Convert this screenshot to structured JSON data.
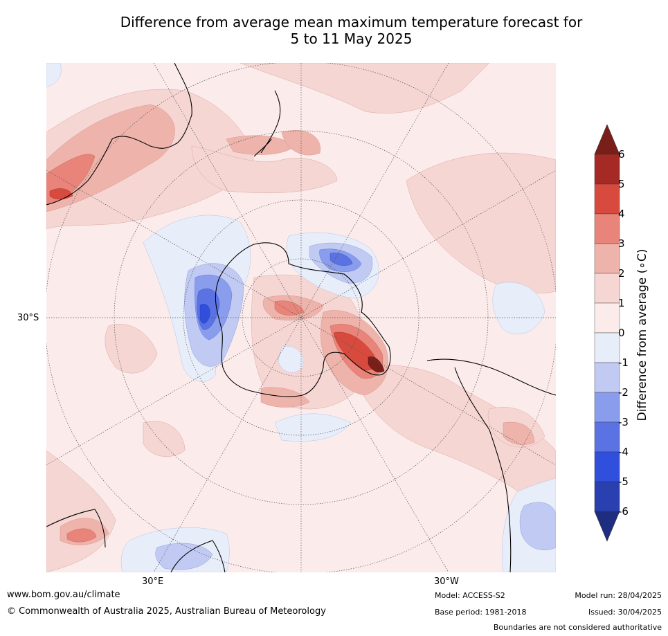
{
  "title": {
    "line1": "Difference from average mean maximum temperature forecast for",
    "line2": "5 to 11 May 2025"
  },
  "axis_labels": {
    "lat": "30°S",
    "lon_east": "30°E",
    "lon_west": "30°W"
  },
  "colorbar": {
    "title": "Difference from average (∘C)",
    "ticks": [
      "6",
      "5",
      "4",
      "3",
      "2",
      "1",
      "0",
      "-1",
      "-2",
      "-3",
      "-4",
      "-5",
      "-6"
    ],
    "colors": [
      "#7a1e1a",
      "#a52a25",
      "#d84a3d",
      "#e8847a",
      "#eeb3ab",
      "#f5d6d3",
      "#fbeceb",
      "#e8edfa",
      "#c0caf2",
      "#8a9ded",
      "#5b72e3",
      "#2f4fdc",
      "#2a3fb0",
      "#1f2d80"
    ]
  },
  "footer": {
    "website": "www.bom.gov.au/climate",
    "copyright": "© Commonwealth of Australia 2025, Australian Bureau of Meteorology",
    "model": "Model: ACCESS-S2",
    "base_period": "Base period: 1981-2018",
    "model_run": "Model run: 28/04/2025",
    "issued": "Issued: 30/04/2025",
    "disclaimer": "Boundaries are not considered authoritative"
  }
}
